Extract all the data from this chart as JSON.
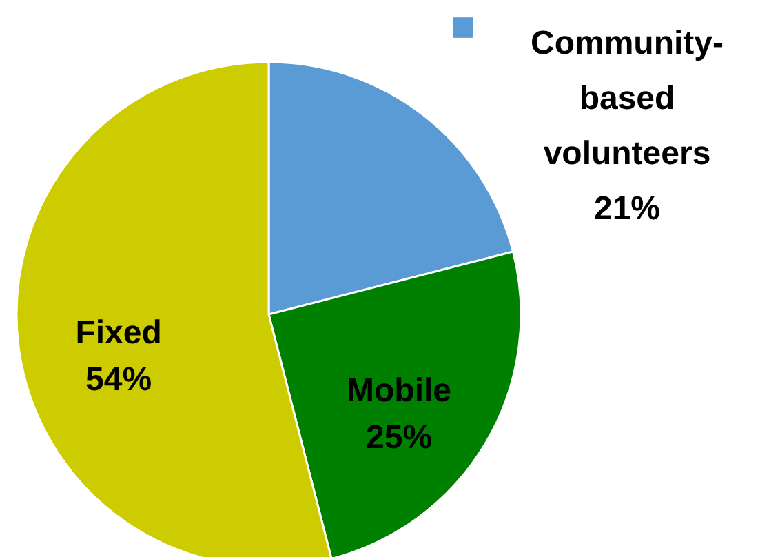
{
  "chart_data": {
    "type": "pie",
    "categories": [
      "Community-based volunteers",
      "Mobile",
      "Fixed"
    ],
    "values": [
      21,
      25,
      54
    ],
    "colors": [
      "#5b9bd5",
      "#008000",
      "#cccc00"
    ],
    "value_labels": [
      "21%",
      "25%",
      "54%"
    ]
  }
}
